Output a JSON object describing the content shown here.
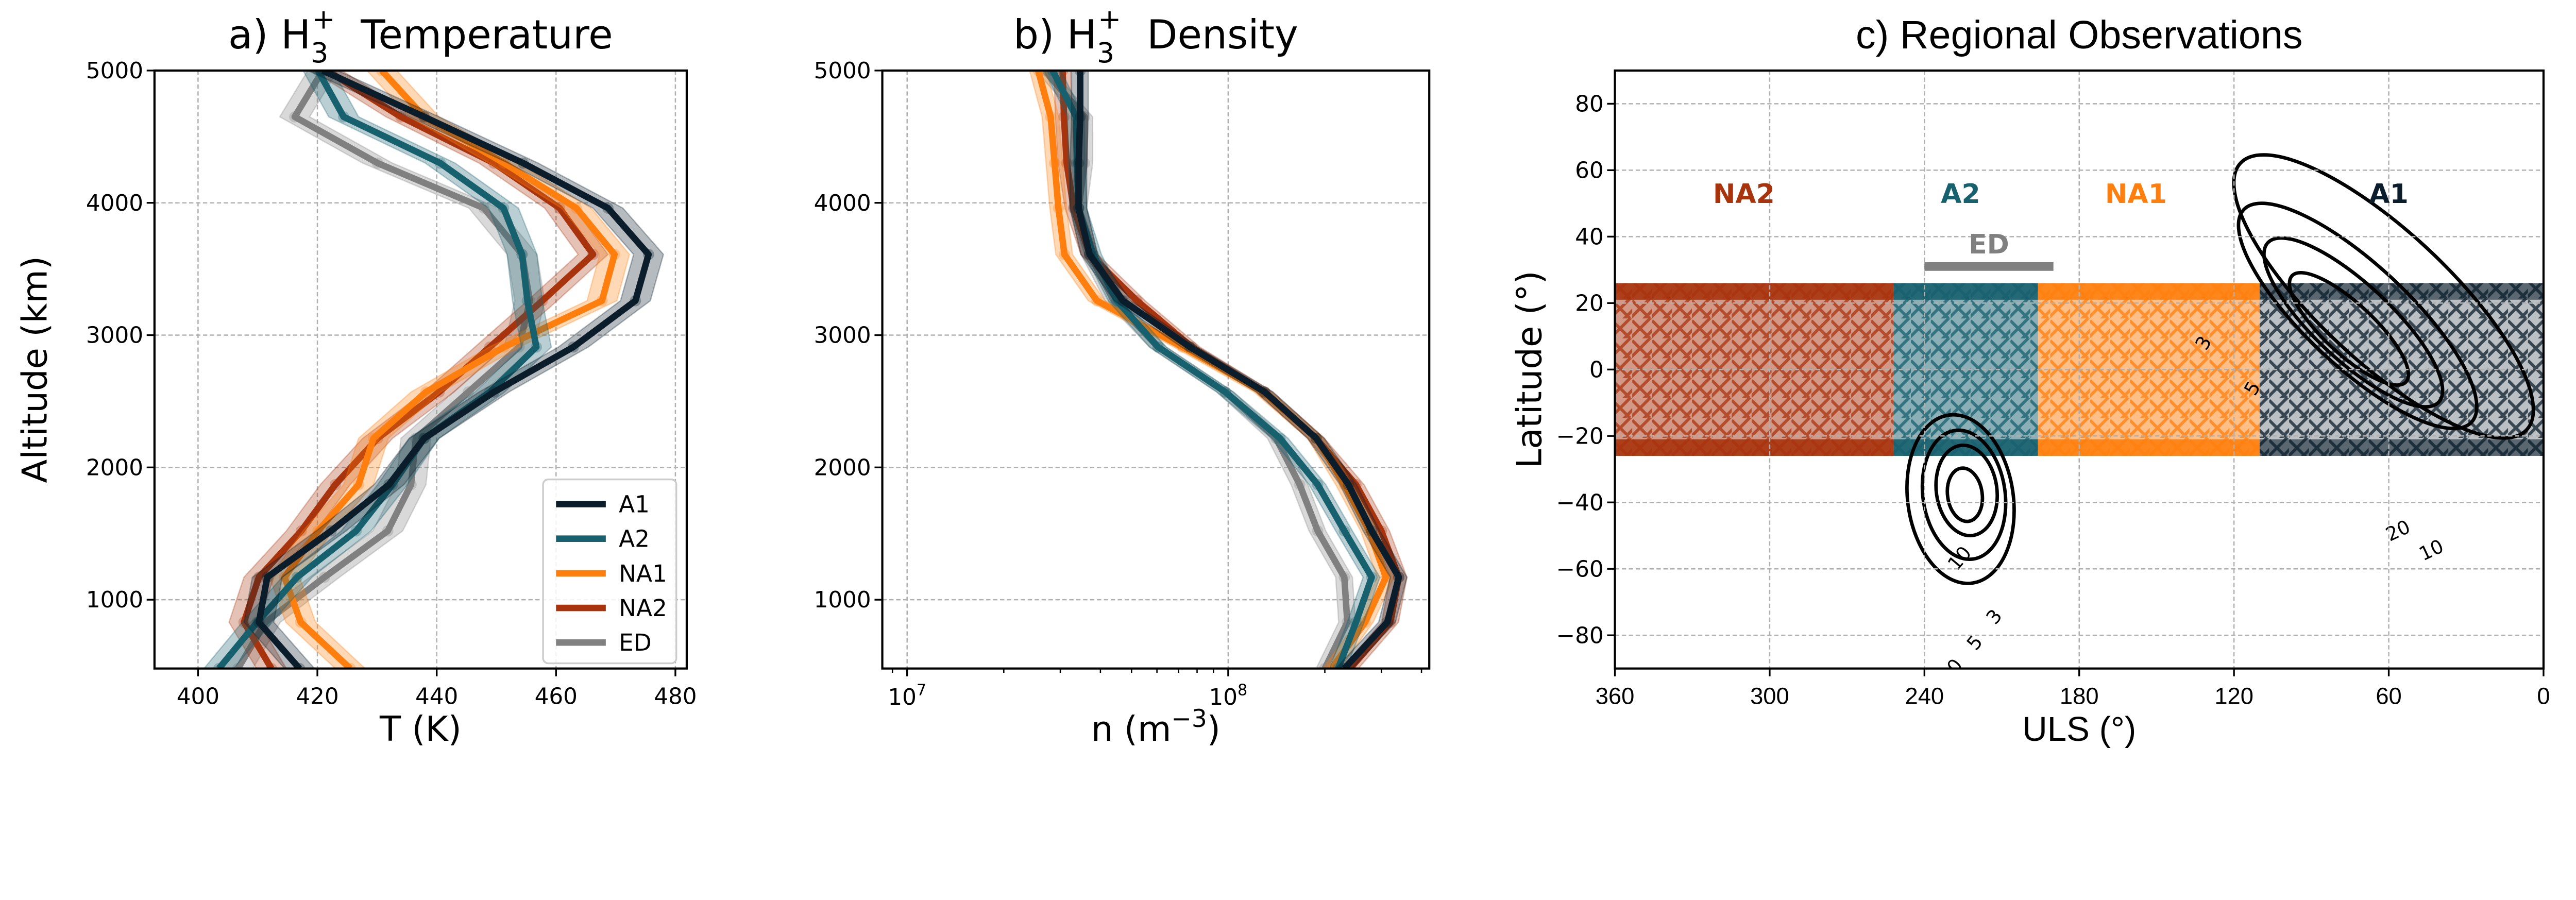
{
  "colors": {
    "A1": "#0b1d2b",
    "A2": "#17606e",
    "NA1": "#ff7f0e",
    "NA2": "#a8340e",
    "ED": "#808080"
  },
  "chart_data": [
    {
      "type": "line",
      "title": {
        "prefix": "a) H",
        "sub": "3",
        "sup": "+",
        "suffix": "Temperature"
      },
      "xlabel": "T (K)",
      "ylabel": "Altitude (km)",
      "xlim": [
        392.7,
        481.9
      ],
      "ylim": [
        480,
        5000
      ],
      "xticks": [
        400,
        420,
        440,
        460,
        480
      ],
      "yticks": [
        1000,
        2000,
        3000,
        4000,
        5000
      ],
      "grid": true,
      "legend": {
        "placement": "lower-right",
        "entries": [
          "A1",
          "A2",
          "NA1",
          "NA2",
          "ED"
        ]
      },
      "uncertainty_K": 2.5,
      "altitude": [
        5000,
        4650,
        4300,
        3960,
        3610,
        3260,
        2910,
        2570,
        2220,
        1870,
        1520,
        1170,
        830,
        480
      ],
      "series": [
        {
          "name": "A1",
          "values": [
            420.9,
            437.9,
            454.5,
            468.7,
            475.5,
            473.3,
            462.9,
            449.6,
            437.9,
            432.0,
            422.3,
            411.6,
            410.2,
            417.0
          ]
        },
        {
          "name": "A2",
          "values": [
            420.1,
            424.4,
            440.6,
            451.2,
            454.3,
            455.2,
            456.7,
            448.9,
            437.9,
            432.6,
            426.5,
            416.6,
            409.9,
            403.5
          ]
        },
        {
          "name": "NA1",
          "values": [
            430.8,
            437.9,
            451.3,
            463.4,
            469.8,
            467.7,
            451.3,
            438.2,
            429.4,
            426.9,
            420.1,
            414.5,
            417.2,
            425.5
          ]
        },
        {
          "name": "NA2",
          "values": [
            421.6,
            434.0,
            449.6,
            460.6,
            466.2,
            457.7,
            448.9,
            440.4,
            430.1,
            423.0,
            417.3,
            410.2,
            407.7,
            412.3
          ]
        },
        {
          "name": "ED",
          "values": [
            420.9,
            416.2,
            430.1,
            447.9,
            454.3,
            455.6,
            453.8,
            445.3,
            436.5,
            435.7,
            431.8,
            421.2,
            411.3,
            406.7
          ]
        }
      ]
    },
    {
      "type": "line",
      "title": {
        "prefix": "b) H",
        "sub": "3",
        "sup": "+",
        "suffix": "Density"
      },
      "xlabel": {
        "prefix": "n (m",
        "sup": "−3",
        "suffix": ")"
      },
      "xscale": "log",
      "xlim": [
        8370000.0,
        423000000.0
      ],
      "ylim": [
        480,
        5000
      ],
      "xticks": [
        {
          "base": "10",
          "exp": "7",
          "value": 10000000.0
        },
        {
          "base": "10",
          "exp": "8",
          "value": 100000000.0
        }
      ],
      "yticks": [
        1000,
        2000,
        3000,
        4000,
        5000
      ],
      "grid": true,
      "relative_uncertainty": 0.06,
      "altitude": [
        5000,
        4650,
        4300,
        3960,
        3610,
        3260,
        2910,
        2570,
        2220,
        1870,
        1520,
        1170,
        830,
        480
      ],
      "series": [
        {
          "name": "A1",
          "values": [
            34600000.0,
            34600000.0,
            34200000.0,
            34200000.0,
            37000000.0,
            47000000.0,
            76000000.0,
            130000000.0,
            188000000.0,
            237000000.0,
            280000000.0,
            340000000.0,
            313000000.0,
            230000000.0
          ]
        },
        {
          "name": "A2",
          "values": [
            28400000.0,
            33600000.0,
            33800000.0,
            34200000.0,
            38000000.0,
            45000000.0,
            60500000.0,
            98000000.0,
            145000000.0,
            190000000.0,
            230000000.0,
            280000000.0,
            250000000.0,
            220000000.0
          ]
        },
        {
          "name": "NA1",
          "values": [
            25600000.0,
            28000000.0,
            28800000.0,
            29600000.0,
            30900000.0,
            39000000.0,
            72000000.0,
            128000000.0,
            188000000.0,
            230000000.0,
            275000000.0,
            310000000.0,
            267000000.0,
            210000000.0
          ]
        },
        {
          "name": "NA2",
          "values": [
            30500000.0,
            30800000.0,
            31400000.0,
            33000000.0,
            37000000.0,
            52000000.0,
            77000000.0,
            130000000.0,
            188000000.0,
            250000000.0,
            300000000.0,
            340000000.0,
            320000000.0,
            240000000.0
          ]
        },
        {
          "name": "ED",
          "values": [
            26800000.0,
            35700000.0,
            35700000.0,
            34200000.0,
            37000000.0,
            44000000.0,
            60500000.0,
            98000000.0,
            141000000.0,
            167000000.0,
            190000000.0,
            230000000.0,
            235000000.0,
            200000000.0
          ]
        }
      ]
    },
    {
      "type": "scatter",
      "title": "c) Regional Observations",
      "xlabel": "ULS (°)",
      "ylabel": "Latitude (°)",
      "xlim": [
        360,
        0
      ],
      "ylim": [
        -90,
        90
      ],
      "xticks": [
        360,
        300,
        240,
        180,
        120,
        60,
        0
      ],
      "yticks": [
        -80,
        -60,
        -40,
        -20,
        0,
        20,
        40,
        60,
        80
      ],
      "grid": true,
      "regions": [
        {
          "name": "NA2",
          "uls": [
            360,
            252
          ],
          "lat": [
            -26,
            26
          ],
          "label_uls": 310,
          "label_lat": 53
        },
        {
          "name": "A2",
          "uls": [
            252,
            196
          ],
          "lat": [
            -26,
            26
          ],
          "label_uls": 226,
          "label_lat": 53
        },
        {
          "name": "NA1",
          "uls": [
            196,
            110
          ],
          "lat": [
            -26,
            26
          ],
          "label_uls": 158,
          "label_lat": 53
        },
        {
          "name": "A1",
          "uls": [
            110,
            0
          ],
          "lat": [
            -26,
            26
          ],
          "label_uls": 60,
          "label_lat": 53
        }
      ],
      "ed_bar": {
        "name": "ED",
        "uls": [
          240,
          190
        ],
        "lat": 31
      },
      "contour_levels": [
        "3",
        "5",
        "10",
        "20"
      ],
      "contour_groups": [
        {
          "name": "north",
          "center_uls": 62,
          "center_lat": 22
        },
        {
          "name": "south",
          "center_uls": 226,
          "center_lat": -39
        }
      ]
    }
  ]
}
